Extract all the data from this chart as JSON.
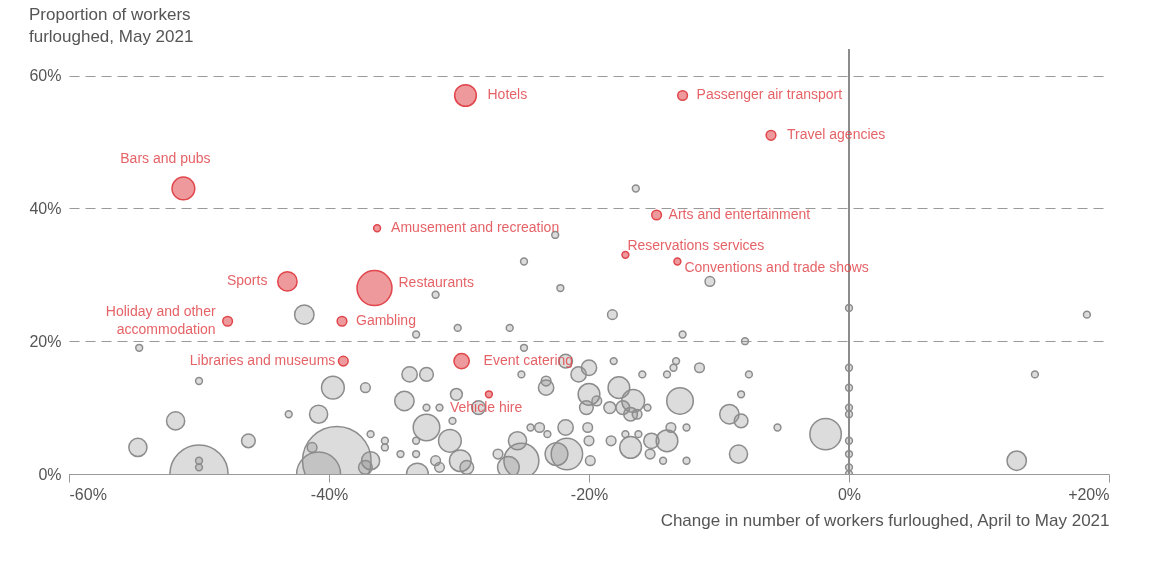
{
  "chart_data": {
    "type": "bubble",
    "xlabel": "Change in number of workers furloughed, April to May 2021",
    "ylabel": "Proportion of workers furloughed, May 2021",
    "xlim": [
      -60,
      20
    ],
    "ylim": [
      0,
      64
    ],
    "xticks": [
      {
        "value": -60,
        "label": "-60%"
      },
      {
        "value": -40,
        "label": "-40%"
      },
      {
        "value": -20,
        "label": "-20%"
      },
      {
        "value": 0,
        "label": "0%"
      },
      {
        "value": 20,
        "label": "+20%"
      }
    ],
    "yticks": [
      {
        "value": 0,
        "label": "0%"
      },
      {
        "value": 20,
        "label": "20%"
      },
      {
        "value": 40,
        "label": "40%"
      },
      {
        "value": 60,
        "label": "60%"
      }
    ],
    "grid": "y",
    "ref_lines": [
      {
        "axis": "x",
        "value": 0,
        "color": "#8c8c8c"
      }
    ],
    "series": [
      {
        "color": "#8c8c8c",
        "x": [
          -54.6,
          -50,
          -41.9,
          -31.8,
          -33.3,
          -30.1,
          -33.8,
          -32.5,
          -39.7,
          -37.2,
          -34.2,
          -32.5,
          -31.5,
          -30.5,
          -32.5,
          -43.1,
          -40.8,
          -51.8,
          -46.2,
          -54.7,
          -50,
          -50,
          -50,
          -39.4,
          -40.8,
          -36.8,
          -37.2,
          -34.5,
          -33.3,
          -36.8,
          -35.7,
          -35.7,
          -33.2,
          -31.8,
          -33.3,
          -41.3,
          -16.4,
          -22.6,
          -25,
          -22.2,
          -18.2,
          -10.7,
          -26.1,
          -12.8,
          -8,
          -25,
          -21.8,
          -18.1,
          -20,
          -25.2,
          -20.8,
          -13.3,
          -13.5,
          -11.5,
          -14,
          -15.9,
          -7.7,
          -23.3,
          -23.3,
          -17.7,
          -20,
          -30.2,
          -8.3,
          -28.5,
          -13,
          -16.6,
          -17.4,
          -15.5,
          -19.4,
          -20.2,
          -18.4,
          -16.8,
          -16.3,
          -9.2,
          -8.3,
          -5.5,
          -12.5,
          -13.7,
          -17.2,
          -16.2,
          -21.8,
          -20.1,
          -24.5,
          -23.8,
          -23.2,
          -25.5,
          -20,
          -18.3,
          -16.8,
          -15.2,
          -14,
          -21.7,
          -22.5,
          -25.2,
          -26.2,
          -30.7,
          -29.9,
          -29.4,
          -31.5,
          -19.9,
          -27,
          -14.3,
          -12.5,
          -8.5,
          -15.3,
          18.3,
          14.3,
          12.9,
          -1.8,
          0,
          0,
          0,
          0,
          0,
          0,
          0,
          0,
          0
        ],
        "values": [
          19,
          14,
          24,
          27,
          21,
          22,
          15,
          15,
          13,
          13,
          11,
          10,
          10,
          8,
          7,
          9,
          9,
          8,
          5,
          4,
          0,
          2,
          1,
          2,
          0,
          2,
          1,
          3,
          5,
          6,
          5,
          4,
          0,
          2,
          3,
          4,
          43,
          36,
          32,
          28,
          24,
          29,
          22,
          21,
          20,
          19,
          17,
          17,
          16,
          15,
          15,
          17,
          16,
          16,
          15,
          15,
          15,
          14,
          13,
          13,
          12,
          12,
          12,
          10,
          11,
          11,
          10,
          10,
          11,
          10,
          10,
          9,
          9,
          9,
          8,
          7,
          7,
          7,
          6,
          6,
          7,
          7,
          7,
          7,
          6,
          5,
          5,
          5,
          4,
          5,
          5,
          3,
          3,
          2,
          1,
          5,
          2,
          1,
          1,
          2,
          3,
          2,
          2,
          3,
          3,
          24,
          15,
          2,
          6,
          25,
          16,
          13,
          10,
          9,
          5,
          3,
          1,
          0
        ],
        "sizes": [
          0.01,
          0.01,
          0.08,
          0.01,
          0.01,
          0.01,
          0.05,
          0.04,
          0.11,
          0.02,
          0.08,
          0.01,
          0.01,
          0.01,
          0.15,
          0.01,
          0.07,
          0.07,
          0.04,
          0.07,
          0.72,
          0.01,
          0.01,
          1,
          0.41,
          0.07,
          0.04,
          0.01,
          0.01,
          0.01,
          0.01,
          0.01,
          0.1,
          0.02,
          0.01,
          0.02,
          0.01,
          0.01,
          0.01,
          0.01,
          0.02,
          0.02,
          0.01,
          0.01,
          0.01,
          0.01,
          0.04,
          0.01,
          0.05,
          0.01,
          0.05,
          0.01,
          0.01,
          0.02,
          0.01,
          0.01,
          0.01,
          0.02,
          0.05,
          0.1,
          0.1,
          0.03,
          0.01,
          0.04,
          0.15,
          0.11,
          0.04,
          0.01,
          0.02,
          0.04,
          0.03,
          0.04,
          0.02,
          0.08,
          0.04,
          0.01,
          0.01,
          0.02,
          0.01,
          0.01,
          0.05,
          0.02,
          0.01,
          0.02,
          0.01,
          0.07,
          0.02,
          0.02,
          0.1,
          0.05,
          0.1,
          0.21,
          0.11,
          0.26,
          0.1,
          0.11,
          0.1,
          0.04,
          0.02,
          0.02,
          0.02,
          0.01,
          0.01,
          0.07,
          0.02,
          0.01,
          0.01,
          0.08,
          0.21,
          0.01,
          0.01,
          0.01,
          0.01,
          0.01,
          0.01,
          0.01,
          0.01,
          0.01
        ]
      },
      {
        "color": "#e0464b",
        "x": [
          -29.5,
          -12.8,
          -6,
          -51.2,
          -14.8,
          -36.3,
          -17.2,
          -13.2,
          -43.2,
          -36.5,
          -47.8,
          -39,
          -38.9,
          -29.8,
          -27.7
        ],
        "values": [
          57,
          57,
          51,
          43,
          39,
          37,
          33,
          32,
          29,
          28,
          23,
          23,
          17,
          17,
          12
        ],
        "sizes": [
          0.1,
          0.02,
          0.02,
          0.11,
          0.02,
          0.01,
          0.01,
          0.01,
          0.08,
          0.26,
          0.02,
          0.02,
          0.02,
          0.05,
          0.01
        ]
      }
    ],
    "annotations": [
      {
        "text": "Hotels",
        "x": -29.5,
        "y": 57
      },
      {
        "text": "Passenger air transport",
        "x": -12.8,
        "y": 57
      },
      {
        "text": "Travel agencies",
        "x": -6,
        "y": 51
      },
      {
        "text": "Bars and pubs",
        "x": -51.2,
        "y": 43
      },
      {
        "text": "Arts and entertainment",
        "x": -14.8,
        "y": 39
      },
      {
        "text": "Amusement and recreation",
        "x": -36.3,
        "y": 37
      },
      {
        "text": "Reservations services",
        "x": -17.2,
        "y": 33
      },
      {
        "text": "Conventions and trade shows",
        "x": -13.2,
        "y": 32
      },
      {
        "text": "Sports",
        "x": -43.2,
        "y": 29
      },
      {
        "text": "Restaurants",
        "x": -36.5,
        "y": 28
      },
      {
        "text": "Holiday and other accommodation",
        "x": -47.8,
        "y": 23
      },
      {
        "text": "Gambling",
        "x": -39,
        "y": 23
      },
      {
        "text": "Libraries and museums",
        "x": -38.9,
        "y": 17
      },
      {
        "text": "Event catering",
        "x": -29.8,
        "y": 17
      },
      {
        "text": "Vehicle hire",
        "x": -27.7,
        "y": 12
      }
    ]
  }
}
